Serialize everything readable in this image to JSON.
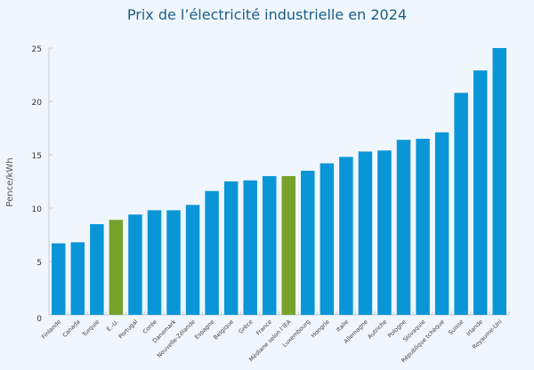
{
  "chart_data": {
    "type": "bar",
    "title": "Prix de l’électricité industrielle en 2024",
    "xlabel": "",
    "ylabel": "Pence/kWh",
    "ylim": [
      0,
      25
    ],
    "yticks": [
      0,
      5,
      10,
      15,
      20,
      25
    ],
    "grid": false,
    "categories": [
      "Finlande",
      "Canada",
      "Turquie",
      "É.-U.",
      "Portugal",
      "Corée",
      "Danemark",
      "Nouvelle-Zélande",
      "Espagne",
      "Belgique",
      "Grèce",
      "France",
      "Médiane selon l’IEA",
      "Luxembourg",
      "Hongrie",
      "Italie",
      "Allemagne",
      "Autriche",
      "Pologne",
      "Slovaquie",
      "République tchèque",
      "Suisse",
      "Irlande",
      "Royaume-Uni"
    ],
    "values": [
      6.7,
      6.8,
      8.5,
      8.9,
      9.4,
      9.8,
      9.8,
      10.3,
      11.6,
      12.5,
      12.6,
      13.0,
      13.0,
      13.5,
      14.2,
      14.8,
      15.3,
      15.4,
      16.4,
      16.5,
      17.1,
      20.8,
      22.9,
      25.0
    ],
    "highlighted": [
      "É.-U.",
      "Médiane selon l’IEA"
    ],
    "colors": {
      "bar": "#0a96d6",
      "highlight": "#76a22c",
      "title": "#1b5f86",
      "background": "#f0f6fd"
    }
  }
}
